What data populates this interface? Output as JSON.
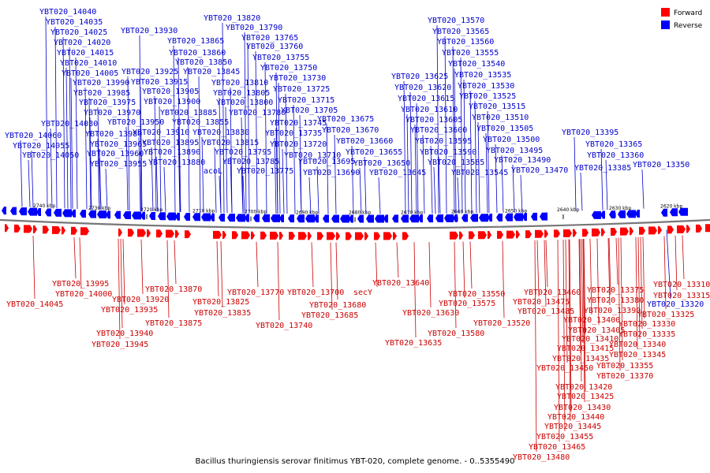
{
  "caption": "Bacillus thuringiensis serovar finitimus YBT-020, complete genome. - 0..5355490",
  "legend": [
    {
      "label": "Forward",
      "color": "#ff0000"
    },
    {
      "label": "Reverse",
      "color": "#0000ff"
    }
  ],
  "colors": {
    "forward": "#cc0000",
    "reverse": "#0000cc",
    "feature_forward": "#ff0000",
    "feature_reverse": "#0000ff",
    "backbone": "#777777"
  },
  "ticks": [
    "2740 kbp",
    "2730 kbp",
    "2720 kbp",
    "2710 kbp",
    "2700 kbp",
    "2690 kbp",
    "2680 kbp",
    "2670 kbp",
    "2660 kbp",
    "2650 kbp",
    "2640 kbp",
    "2630 kbp",
    "2620 kbp"
  ],
  "reverse_labels": [
    "YBT020_14040",
    "YBT020_14035",
    "YBT020_14025",
    "YBT020_14020",
    "YBT020_14015",
    "YBT020_14010",
    "YBT020_14005",
    "YBT020_13990",
    "YBT020_13985",
    "YBT020_13975",
    "YBT020_13970",
    "YBT020_14030",
    "YBT020_13980",
    "YBT020_14060",
    "YBT020_14055",
    "YBT020_14050",
    "YBT020_13965",
    "YBT020_13960",
    "YBT020_13955",
    "YBT020_13930",
    "YBT020_13925",
    "YBT020_13915",
    "YBT020_13905",
    "YBT020_13900",
    "YBT020_13950",
    "YBT020_13910",
    "YBT020_13895",
    "YBT020_13890",
    "YBT020_13880",
    "YBT020_13820",
    "YBT020_13865",
    "YBT020_13860",
    "YBT020_13850",
    "YBT020_13845",
    "YBT020_13885",
    "YBT020_13855",
    "YBT020_13830",
    "YBT020_13815",
    "acoL",
    "YBT020_13790",
    "YBT020_13765",
    "YBT020_13760",
    "YBT020_13755",
    "YBT020_13750",
    "YBT020_13810",
    "YBT020_13805",
    "YBT020_13800",
    "YBT020_13780",
    "YBT020_13795",
    "YBT020_13785",
    "YBT020_13775",
    "YBT020_13730",
    "YBT020_13725",
    "YBT020_13715",
    "YBT020_13705",
    "YBT020_13745",
    "YBT020_13735",
    "YBT020_13720",
    "YBT020_13710",
    "YBT020_13695",
    "YBT020_13690",
    "YBT020_13675",
    "YBT020_13670",
    "YBT020_13660",
    "YBT020_13655",
    "YBT020_13650",
    "YBT020_13645",
    "YBT020_13625",
    "YBT020_13620",
    "YBT020_13615",
    "YBT020_13610",
    "YBT020_13605",
    "YBT020_13600",
    "YBT020_13595",
    "YBT020_13590",
    "YBT020_13585",
    "YBT020_13570",
    "YBT020_13565",
    "YBT020_13560",
    "YBT020_13555",
    "YBT020_13540",
    "YBT020_13535",
    "YBT020_13530",
    "YBT020_13525",
    "YBT020_13515",
    "YBT020_13510",
    "YBT020_13505",
    "YBT020_13500",
    "YBT020_13495",
    "YBT020_13490",
    "YBT020_13545",
    "YBT020_13470",
    "YBT020_13395",
    "YBT020_13365",
    "YBT020_13360",
    "YBT020_13385",
    "YBT020_13350",
    "YBT020_13320"
  ],
  "forward_labels": [
    "YBT020_13995",
    "YBT020_14000",
    "YBT020_14045",
    "YBT020_13920",
    "YBT020_13935",
    "YBT020_13940",
    "YBT020_13945",
    "YBT020_13870",
    "YBT020_13875",
    "YBT020_13825",
    "YBT020_13835",
    "YBT020_13770",
    "YBT020_13740",
    "YBT020_13700",
    "YBT020_13680",
    "YBT020_13685",
    "secY",
    "YBT020_13640",
    "YBT020_13630",
    "YBT020_13635",
    "YBT020_13550",
    "YBT020_13575",
    "YBT020_13580",
    "YBT020_13520",
    "YBT020_13460",
    "YBT020_13475",
    "YBT020_13485",
    "YBT020_13375",
    "YBT020_13380",
    "YBT020_13390",
    "YBT020_13400",
    "YBT020_13405",
    "YBT020_13410",
    "YBT020_13415",
    "YBT020_13435",
    "YBT020_13450",
    "YBT020_13370",
    "YBT020_13355",
    "YBT020_13345",
    "YBT020_13340",
    "YBT020_13335",
    "YBT020_13330",
    "YBT020_13325",
    "YBT020_13310",
    "YBT020_13315",
    "YBT020_13420",
    "YBT020_13425",
    "YBT020_13430",
    "YBT020_13440",
    "YBT020_13445",
    "YBT020_13455",
    "YBT020_13465",
    "YBT020_13480"
  ]
}
